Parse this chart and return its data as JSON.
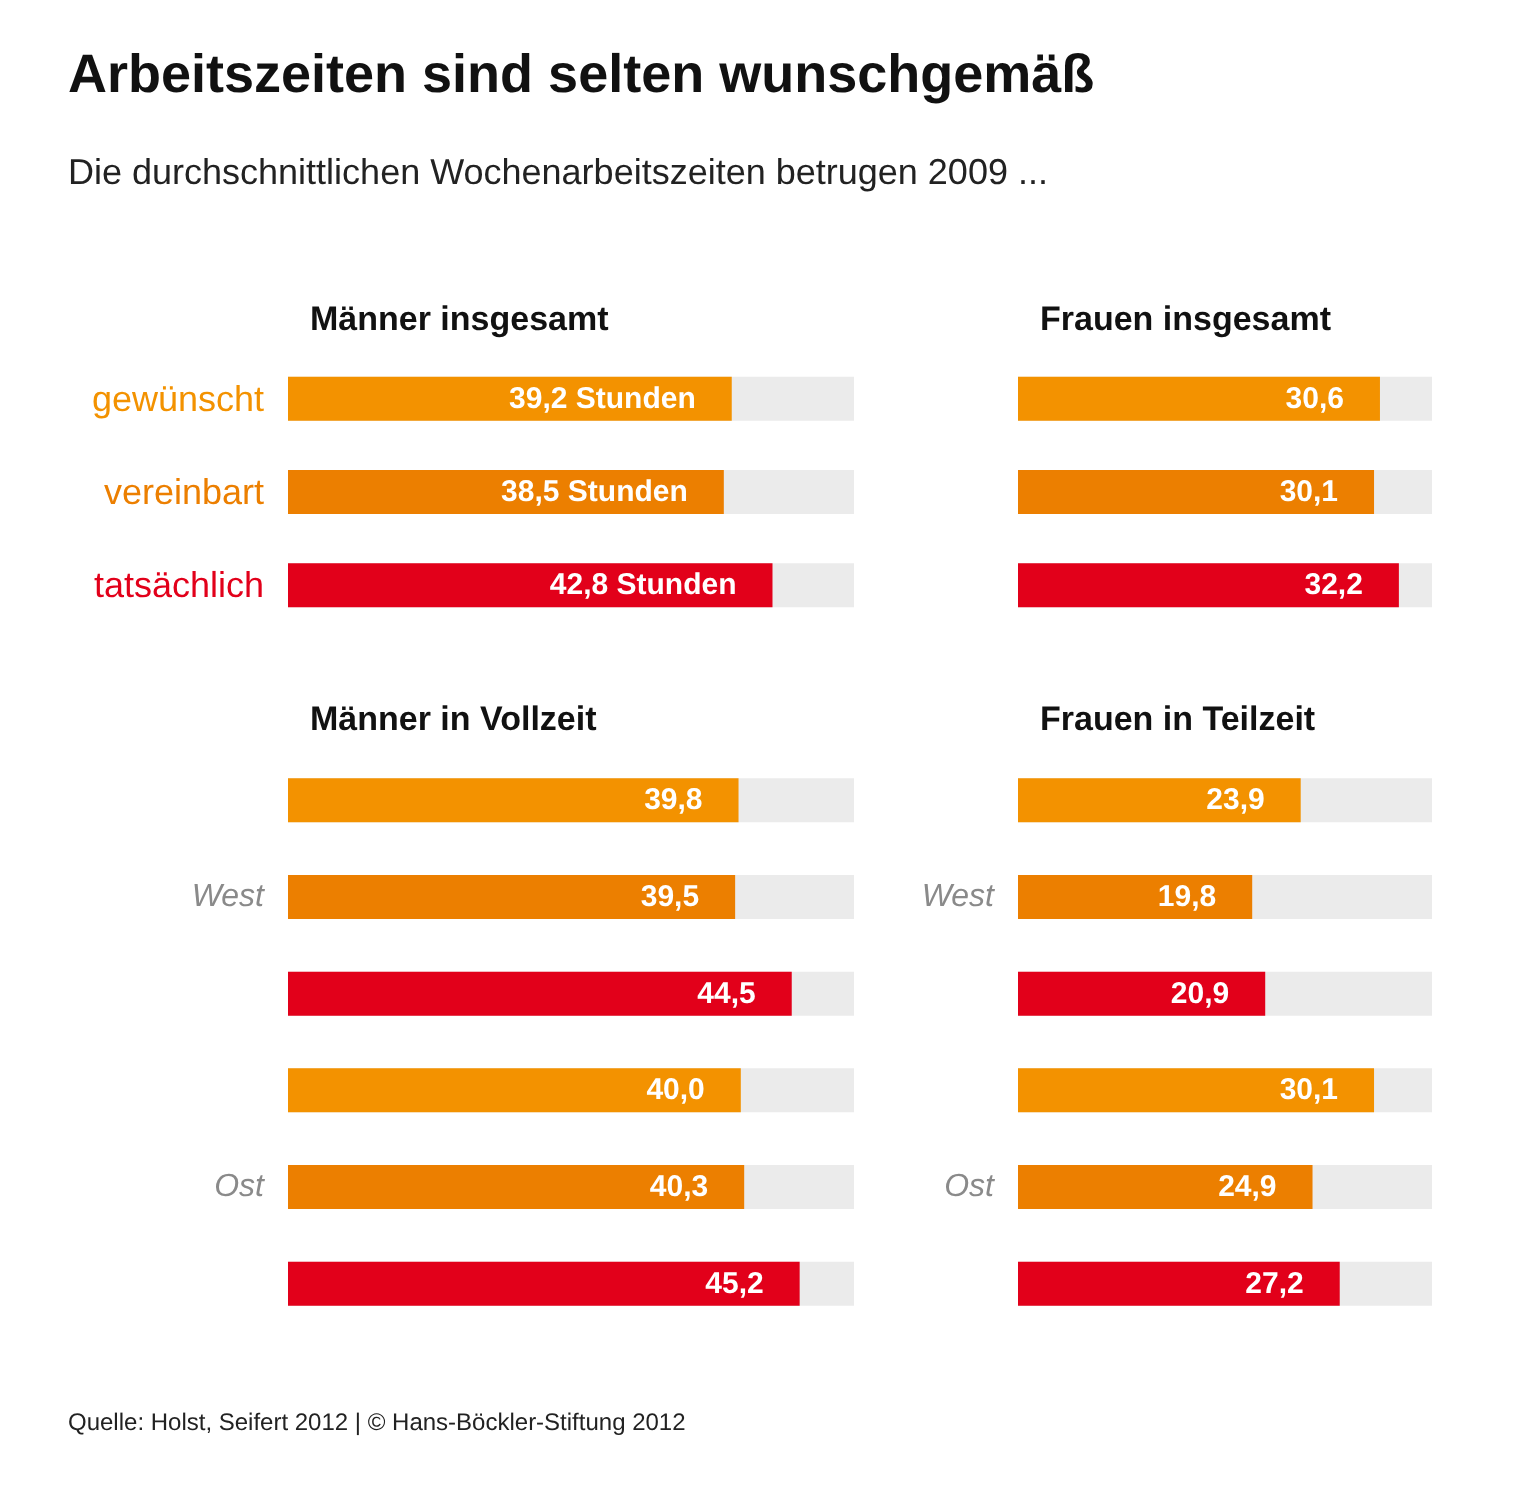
{
  "chart_data": [
    {
      "type": "other",
      "title": "Arbeitszeiten sind selten wunschgemäß",
      "subtitle": "Die durchschnittlichen Wochenarbeitszeiten betrugen 2009 ...",
      "annotations": [
        "Quelle: Holst, Seifert 2012 | © Hans-Böckler-Stiftung 2012"
      ]
    },
    {
      "type": "bar",
      "orientation": "horizontal",
      "title": "Männer insgesamt",
      "categories": [
        "gewünscht",
        "vereinbart",
        "tatsächlich"
      ],
      "values": [
        39.2,
        38.5,
        42.8
      ],
      "colors": [
        "#f39200",
        "#ec7f00",
        "#e2001a"
      ],
      "value_labels": [
        "39,2 Stunden",
        "38,5 Stunden",
        "42,8 Stunden"
      ]
    },
    {
      "type": "bar",
      "orientation": "horizontal",
      "title": "Frauen insgesamt",
      "categories": [
        null,
        null,
        null
      ],
      "values": [
        30.6,
        30.1,
        32.2
      ],
      "colors": [
        "#f39200",
        "#ec7f00",
        "#e2001a"
      ],
      "value_labels": [
        "30,6",
        "30,1",
        "32,2"
      ]
    },
    {
      "type": "bar",
      "orientation": "horizontal",
      "title": "Männer in Vollzeit",
      "categories": [
        null,
        "West",
        null,
        null,
        "Ost",
        null
      ],
      "values": [
        39.8,
        39.5,
        44.5,
        40.0,
        40.3,
        45.2
      ],
      "colors": [
        "#f39200",
        "#ec7f00",
        "#e2001a",
        "#f39200",
        "#ec7f00",
        "#e2001a"
      ],
      "value_labels": [
        "39,8",
        "39,5",
        "44,5",
        "40,0",
        "40,3",
        "45,2"
      ]
    },
    {
      "type": "bar",
      "orientation": "horizontal",
      "title": "Frauen in Teilzeit",
      "categories": [
        null,
        "West",
        null,
        null,
        "Ost",
        null
      ],
      "values": [
        23.9,
        19.8,
        20.9,
        30.1,
        24.9,
        27.2
      ],
      "colors": [
        "#f39200",
        "#ec7f00",
        "#e2001a",
        "#f39200",
        "#ec7f00",
        "#e2001a"
      ],
      "value_labels": [
        "23,9",
        "19,8",
        "20,9",
        "30,1",
        "24,9",
        "27,2"
      ]
    }
  ]
}
